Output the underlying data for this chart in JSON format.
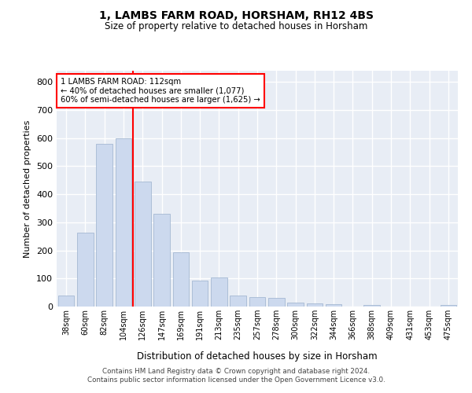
{
  "title": "1, LAMBS FARM ROAD, HORSHAM, RH12 4BS",
  "subtitle": "Size of property relative to detached houses in Horsham",
  "xlabel": "Distribution of detached houses by size in Horsham",
  "ylabel": "Number of detached properties",
  "categories": [
    "38sqm",
    "60sqm",
    "82sqm",
    "104sqm",
    "126sqm",
    "147sqm",
    "169sqm",
    "191sqm",
    "213sqm",
    "235sqm",
    "257sqm",
    "278sqm",
    "300sqm",
    "322sqm",
    "344sqm",
    "366sqm",
    "388sqm",
    "409sqm",
    "431sqm",
    "453sqm",
    "475sqm"
  ],
  "values": [
    40,
    262,
    580,
    600,
    445,
    330,
    192,
    92,
    104,
    38,
    35,
    30,
    15,
    12,
    8,
    0,
    5,
    0,
    0,
    0,
    5
  ],
  "bar_color": "#ccd9ee",
  "bar_edge_color": "#9ab0cc",
  "red_line_x": 3.5,
  "annotation_text": "1 LAMBS FARM ROAD: 112sqm\n← 40% of detached houses are smaller (1,077)\n60% of semi-detached houses are larger (1,625) →",
  "ylim": [
    0,
    840
  ],
  "yticks": [
    0,
    100,
    200,
    300,
    400,
    500,
    600,
    700,
    800
  ],
  "background_color": "#e8edf5",
  "grid_color": "#ffffff",
  "footer_line1": "Contains HM Land Registry data © Crown copyright and database right 2024.",
  "footer_line2": "Contains public sector information licensed under the Open Government Licence v3.0."
}
